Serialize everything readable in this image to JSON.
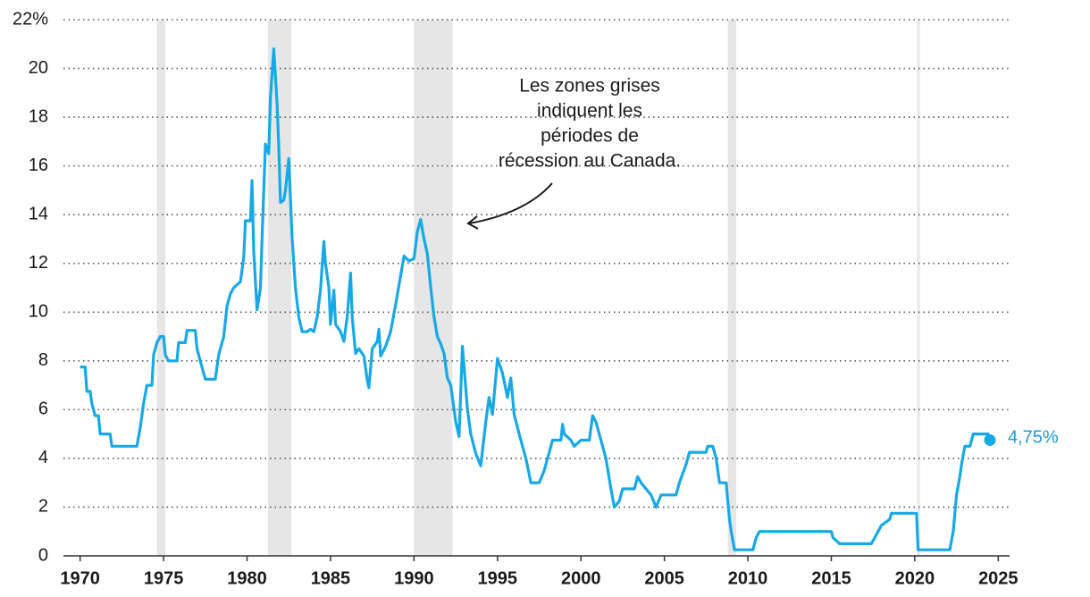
{
  "chart_data": {
    "type": "line",
    "annotation": [
      "Les zones grises",
      "indiquent les",
      "périodes de",
      "récession au Canada."
    ],
    "xlim": [
      1969,
      2026
    ],
    "xticks": [
      1970,
      1975,
      1980,
      1985,
      1990,
      1995,
      2000,
      2005,
      2010,
      2015,
      2020,
      2025
    ],
    "ylim": [
      0,
      22
    ],
    "yticks": [
      0,
      2,
      4,
      6,
      8,
      10,
      12,
      14,
      16,
      18,
      20,
      {
        "value": 22,
        "label": "22%"
      }
    ],
    "grid": true,
    "color": "#17a9e6",
    "recessions": [
      [
        1974.6,
        1975.1
      ],
      [
        1981.25,
        1982.65
      ],
      [
        1990.0,
        1992.3
      ],
      [
        2008.8,
        2009.3
      ],
      [
        2020.15,
        2020.3
      ]
    ],
    "end_point": {
      "x": 2024.5,
      "value": 4.75,
      "label": "4,75%"
    },
    "x": [
      1970.0,
      1970.3,
      1970.4,
      1970.6,
      1970.7,
      1970.9,
      1971.1,
      1971.2,
      1971.8,
      1971.9,
      1973.4,
      1973.6,
      1973.8,
      1974.0,
      1974.3,
      1974.4,
      1974.6,
      1974.8,
      1975.0,
      1975.1,
      1975.3,
      1975.8,
      1975.9,
      1976.3,
      1976.4,
      1976.9,
      1977.0,
      1977.2,
      1977.4,
      1977.5,
      1978.1,
      1978.3,
      1978.6,
      1978.8,
      1979.0,
      1979.2,
      1979.6,
      1979.8,
      1979.9,
      1980.2,
      1980.3,
      1980.4,
      1980.6,
      1980.8,
      1980.9,
      1981.1,
      1981.3,
      1981.4,
      1981.6,
      1981.8,
      1981.9,
      1982.0,
      1982.2,
      1982.3,
      1982.5,
      1982.7,
      1982.9,
      1983.1,
      1983.3,
      1983.6,
      1983.8,
      1984.0,
      1984.2,
      1984.4,
      1984.6,
      1984.7,
      1984.9,
      1985.0,
      1985.2,
      1985.3,
      1985.6,
      1985.8,
      1986.0,
      1986.2,
      1986.3,
      1986.5,
      1986.7,
      1987.0,
      1987.2,
      1987.3,
      1987.5,
      1987.8,
      1987.9,
      1988.0,
      1988.3,
      1988.6,
      1988.9,
      1989.2,
      1989.4,
      1989.7,
      1990.0,
      1990.2,
      1990.4,
      1990.6,
      1990.8,
      1991.0,
      1991.2,
      1991.4,
      1991.6,
      1991.8,
      1992.0,
      1992.2,
      1992.5,
      1992.7,
      1992.9,
      1993.2,
      1993.4,
      1993.7,
      1994.0,
      1994.3,
      1994.5,
      1994.7,
      1995.0,
      1995.3,
      1995.6,
      1995.8,
      1996.0,
      1996.3,
      1996.7,
      1997.0,
      1997.5,
      1997.8,
      1998.2,
      1998.3,
      1998.8,
      1998.9,
      1999.0,
      1999.4,
      1999.6,
      2000.0,
      2000.5,
      2000.7,
      2000.9,
      2001.2,
      2001.5,
      2001.8,
      2002.0,
      2002.3,
      2002.5,
      2003.2,
      2003.4,
      2003.6,
      2003.9,
      2004.2,
      2004.5,
      2004.8,
      2005.7,
      2005.9,
      2006.3,
      2006.5,
      2007.5,
      2007.6,
      2007.9,
      2008.1,
      2008.3,
      2008.7,
      2008.8,
      2008.9,
      2009.0,
      2009.2,
      2010.3,
      2010.5,
      2010.7,
      2015.0,
      2015.1,
      2015.5,
      2017.4,
      2017.6,
      2017.8,
      2018.0,
      2018.5,
      2018.6,
      2020.1,
      2020.2,
      2022.1,
      2022.3,
      2022.5,
      2022.7,
      2022.8,
      2023.0,
      2023.3,
      2023.5,
      2024.4,
      2024.5
    ],
    "values": [
      7.75,
      7.75,
      6.75,
      6.75,
      6.25,
      5.75,
      5.75,
      5.0,
      5.0,
      4.5,
      4.5,
      5.25,
      6.25,
      7.0,
      7.0,
      8.25,
      8.75,
      9.0,
      9.0,
      8.25,
      8.0,
      8.0,
      8.75,
      8.75,
      9.25,
      9.25,
      8.5,
      8.0,
      7.5,
      7.25,
      7.25,
      8.25,
      9.0,
      10.25,
      10.75,
      11.0,
      11.25,
      12.25,
      13.75,
      13.75,
      15.4,
      12.5,
      10.1,
      11.0,
      13.0,
      16.9,
      16.5,
      18.8,
      20.8,
      18.5,
      16.8,
      14.5,
      14.6,
      15.0,
      16.3,
      13.0,
      11.0,
      9.8,
      9.2,
      9.2,
      9.3,
      9.2,
      9.8,
      10.9,
      12.9,
      12.0,
      11.0,
      9.5,
      10.9,
      9.5,
      9.2,
      8.8,
      9.8,
      11.6,
      9.8,
      8.3,
      8.5,
      8.2,
      7.2,
      6.9,
      8.5,
      8.8,
      9.3,
      8.2,
      8.6,
      9.2,
      10.3,
      11.5,
      12.3,
      12.1,
      12.2,
      13.3,
      13.8,
      13.0,
      12.4,
      11.0,
      9.8,
      9.0,
      8.7,
      8.3,
      7.3,
      7.0,
      5.5,
      4.9,
      8.6,
      6.0,
      5.0,
      4.2,
      3.7,
      5.5,
      6.5,
      5.8,
      8.1,
      7.5,
      6.5,
      7.3,
      5.8,
      5.0,
      4.0,
      3.0,
      3.0,
      3.5,
      4.5,
      4.75,
      4.75,
      5.4,
      5.0,
      4.75,
      4.5,
      4.75,
      4.75,
      5.75,
      5.5,
      4.75,
      4.0,
      2.75,
      2.0,
      2.25,
      2.75,
      2.75,
      3.25,
      3.0,
      2.75,
      2.5,
      2.0,
      2.5,
      2.5,
      3.0,
      3.75,
      4.25,
      4.25,
      4.5,
      4.5,
      4.0,
      3.0,
      3.0,
      2.25,
      1.5,
      1.0,
      0.25,
      0.25,
      0.75,
      1.0,
      1.0,
      0.75,
      0.5,
      0.5,
      0.75,
      1.0,
      1.25,
      1.5,
      1.75,
      1.75,
      0.25,
      0.25,
      1.0,
      2.5,
      3.25,
      3.75,
      4.5,
      4.5,
      5.0,
      5.0,
      4.75
    ]
  }
}
